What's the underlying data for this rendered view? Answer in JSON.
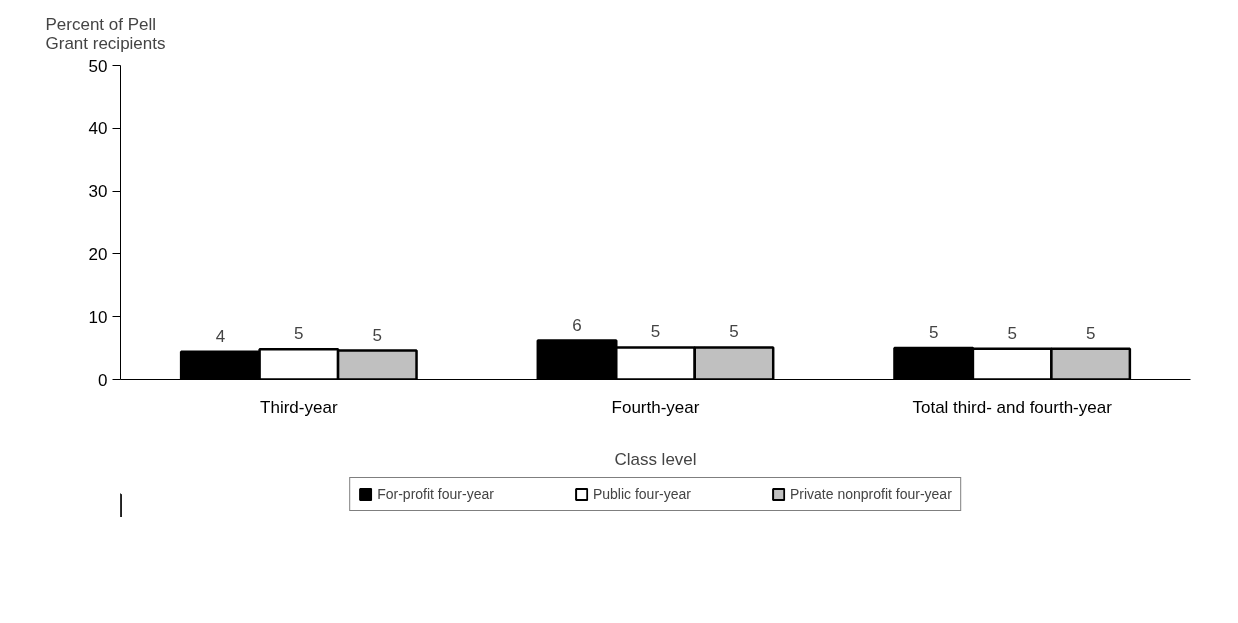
{
  "chart_data": {
    "type": "bar",
    "xlabel": "Class level",
    "ylabel": "Percent of Pell Grant recipients",
    "categories": [
      "Third-year",
      "Fourth-year",
      "Total third- and fourth-year"
    ],
    "series": [
      {
        "name": "For-profit four-year",
        "color": "#000000",
        "values": [
          4.4,
          6.2,
          5.0
        ],
        "value_labels": [
          "4",
          "6",
          "5"
        ]
      },
      {
        "name": "Public four-year",
        "color": "#ffffff",
        "values": [
          4.8,
          5.1,
          4.9
        ],
        "value_labels": [
          "5",
          "5",
          "5"
        ]
      },
      {
        "name": "Private nonprofit four-year",
        "color": "#c0c0c0",
        "values": [
          4.6,
          5.1,
          4.9
        ],
        "value_labels": [
          "5",
          "5",
          "5"
        ]
      }
    ],
    "ylim": [
      0,
      50
    ],
    "yticks": [
      0,
      10,
      20,
      30,
      40,
      50
    ],
    "grid": false,
    "legend": "bottom"
  }
}
